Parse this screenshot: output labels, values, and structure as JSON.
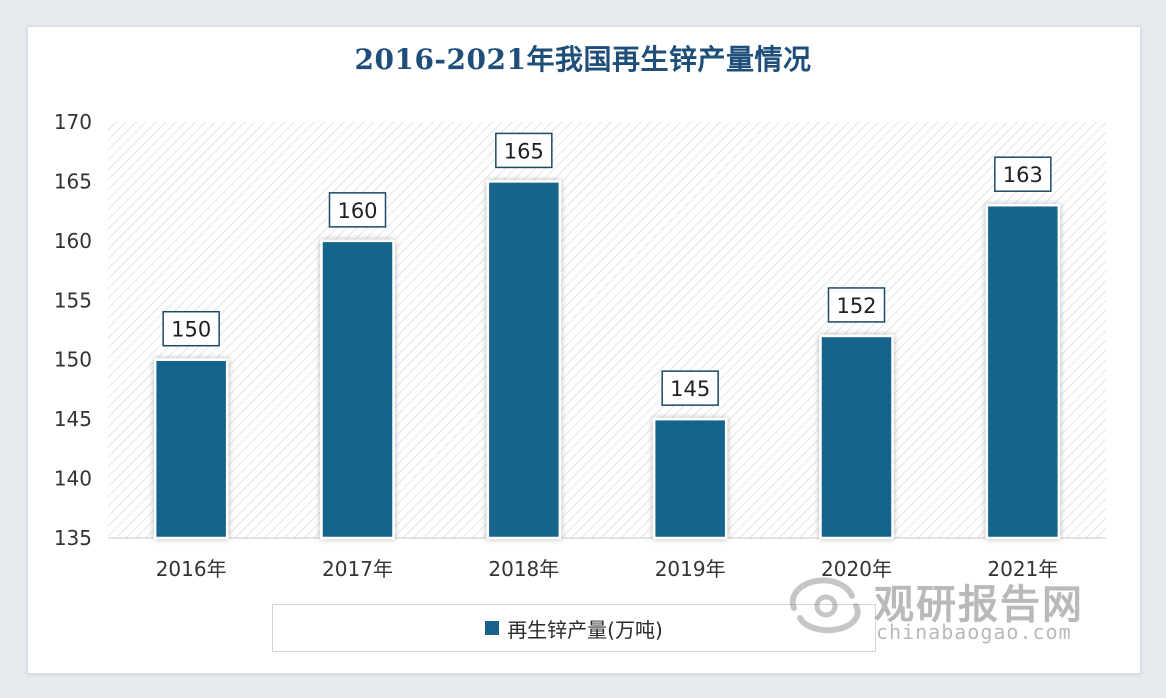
{
  "chart_data": {
    "type": "bar",
    "title": "2016-2021年我国再生锌产量情况",
    "categories": [
      "2016年",
      "2017年",
      "2018年",
      "2019年",
      "2020年",
      "2021年"
    ],
    "series": [
      {
        "name": "再生锌产量(万吨)",
        "values": [
          150,
          160,
          165,
          145,
          152,
          163
        ]
      }
    ],
    "ylim": [
      135,
      170
    ],
    "yticks": [
      135,
      140,
      145,
      150,
      155,
      160,
      165,
      170
    ],
    "data_labels": [
      "150",
      "160",
      "165",
      "145",
      "152",
      "163"
    ],
    "legend": "bottom",
    "grid": false
  },
  "colors": {
    "bar": "#17638c",
    "title": "#1e4e79"
  },
  "watermark": {
    "brand": "观研报告网",
    "url": "chinabaogao.com"
  }
}
